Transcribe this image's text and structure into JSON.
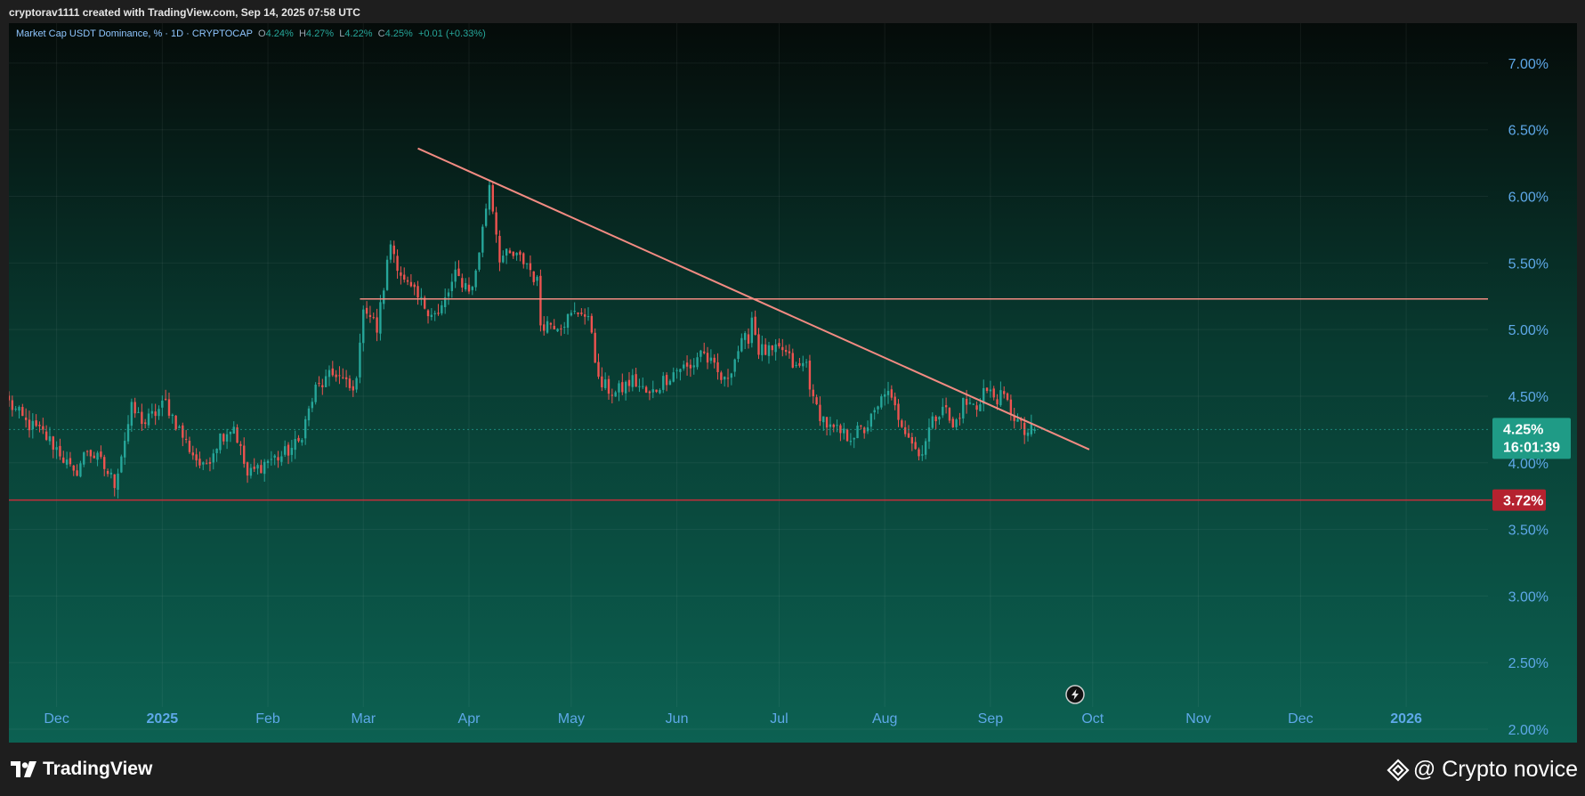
{
  "header": {
    "attribution": "cryptorav1111 created with TradingView.com, Sep 14, 2025 07:58 UTC"
  },
  "legend": {
    "symbol": "Market Cap USDT Dominance, % · 1D · CRYPTOCAP",
    "o_label": "O",
    "o_value": "4.24%",
    "h_label": "H",
    "h_value": "4.27%",
    "l_label": "L",
    "l_value": "4.22%",
    "c_label": "C",
    "c_value": "4.25%",
    "change": "+0.01 (+0.33%)"
  },
  "price_tags": {
    "current_price": "4.25%",
    "countdown": "16:01:39",
    "support_level": "3.72%"
  },
  "footer": {
    "brand": "TradingView",
    "watermark": "@ Crypto novice"
  },
  "colors": {
    "up": "#26a69a",
    "down": "#ef5350",
    "trendline": "#f28b82",
    "support_line": "#c62e3a",
    "current_tag": "#1f9b86",
    "support_tag": "#b5222f",
    "axis_text": "#5ea8e8"
  },
  "icons": [
    "flash-icon",
    "tradingview-logo-icon",
    "binance-diamond-icon"
  ],
  "chart_data": {
    "type": "candlestick",
    "title": "Market Cap USDT Dominance, %",
    "timeframe": "1D",
    "ylim": [
      1.9,
      7.3
    ],
    "y_ticks": [
      "2.00%",
      "2.50%",
      "3.00%",
      "3.50%",
      "4.00%",
      "4.50%",
      "5.00%",
      "5.50%",
      "6.00%",
      "6.50%",
      "7.00%"
    ],
    "x_ticks": [
      "Dec",
      "2025",
      "Feb",
      "Mar",
      "Apr",
      "May",
      "Jun",
      "Jul",
      "Aug",
      "Sep",
      "Oct",
      "Nov",
      "Dec",
      "2026"
    ],
    "x_tick_dates": [
      "2024-12-01",
      "2025-01-01",
      "2025-02-01",
      "2025-03-01",
      "2025-04-01",
      "2025-05-01",
      "2025-06-01",
      "2025-07-01",
      "2025-08-01",
      "2025-09-01",
      "2025-10-01",
      "2025-11-01",
      "2025-12-01",
      "2026-01-01"
    ],
    "xlim": [
      "2024-11-17",
      "2026-01-25"
    ],
    "grid": true,
    "close_path": [
      [
        "2024-11-17",
        4.45
      ],
      [
        "2024-11-22",
        4.3
      ],
      [
        "2024-11-27",
        4.22
      ],
      [
        "2024-12-02",
        4.08
      ],
      [
        "2024-12-06",
        3.9
      ],
      [
        "2024-12-10",
        4.1
      ],
      [
        "2024-12-14",
        4.0
      ],
      [
        "2024-12-18",
        3.85
      ],
      [
        "2024-12-23",
        4.4
      ],
      [
        "2024-12-27",
        4.3
      ],
      [
        "2025-01-02",
        4.45
      ],
      [
        "2025-01-08",
        4.15
      ],
      [
        "2025-01-13",
        3.95
      ],
      [
        "2025-01-18",
        4.2
      ],
      [
        "2025-01-22",
        4.28
      ],
      [
        "2025-01-26",
        3.9
      ],
      [
        "2025-02-01",
        4.02
      ],
      [
        "2025-02-05",
        4.05
      ],
      [
        "2025-02-10",
        4.15
      ],
      [
        "2025-02-15",
        4.55
      ],
      [
        "2025-02-21",
        4.68
      ],
      [
        "2025-02-26",
        4.52
      ],
      [
        "2025-02-28",
        4.85
      ],
      [
        "2025-03-01",
        5.2
      ],
      [
        "2025-03-05",
        5.0
      ],
      [
        "2025-03-09",
        5.65
      ],
      [
        "2025-03-13",
        5.35
      ],
      [
        "2025-03-18",
        5.2
      ],
      [
        "2025-03-23",
        5.1
      ],
      [
        "2025-03-28",
        5.4
      ],
      [
        "2025-04-02",
        5.3
      ],
      [
        "2025-04-05",
        5.75
      ],
      [
        "2025-04-07",
        6.1
      ],
      [
        "2025-04-10",
        5.55
      ],
      [
        "2025-04-14",
        5.55
      ],
      [
        "2025-04-18",
        5.5
      ],
      [
        "2025-04-21",
        5.35
      ],
      [
        "2025-04-22",
        5.05
      ],
      [
        "2025-04-28",
        5.05
      ],
      [
        "2025-05-01",
        5.1
      ],
      [
        "2025-05-04",
        5.15
      ],
      [
        "2025-05-07",
        5.0
      ],
      [
        "2025-05-09",
        4.6
      ],
      [
        "2025-05-14",
        4.52
      ],
      [
        "2025-05-19",
        4.62
      ],
      [
        "2025-05-24",
        4.5
      ],
      [
        "2025-05-28",
        4.62
      ],
      [
        "2025-06-02",
        4.72
      ],
      [
        "2025-06-05",
        4.7
      ],
      [
        "2025-06-08",
        4.85
      ],
      [
        "2025-06-12",
        4.7
      ],
      [
        "2025-06-15",
        4.6
      ],
      [
        "2025-06-19",
        4.85
      ],
      [
        "2025-06-22",
        4.95
      ],
      [
        "2025-06-23",
        5.1
      ],
      [
        "2025-06-25",
        4.85
      ],
      [
        "2025-06-29",
        4.82
      ],
      [
        "2025-07-02",
        4.85
      ],
      [
        "2025-07-06",
        4.7
      ],
      [
        "2025-07-09",
        4.75
      ],
      [
        "2025-07-11",
        4.45
      ],
      [
        "2025-07-16",
        4.25
      ],
      [
        "2025-07-21",
        4.2
      ],
      [
        "2025-07-26",
        4.25
      ],
      [
        "2025-07-30",
        4.4
      ],
      [
        "2025-08-01",
        4.55
      ],
      [
        "2025-08-04",
        4.4
      ],
      [
        "2025-08-08",
        4.22
      ],
      [
        "2025-08-11",
        4.05
      ],
      [
        "2025-08-14",
        4.25
      ],
      [
        "2025-08-18",
        4.45
      ],
      [
        "2025-08-21",
        4.25
      ],
      [
        "2025-08-24",
        4.45
      ],
      [
        "2025-08-28",
        4.42
      ],
      [
        "2025-08-30",
        4.55
      ],
      [
        "2025-09-02",
        4.5
      ],
      [
        "2025-09-05",
        4.48
      ],
      [
        "2025-09-08",
        4.35
      ],
      [
        "2025-09-11",
        4.22
      ],
      [
        "2025-09-14",
        4.25
      ]
    ],
    "trendline": {
      "start": [
        "2025-03-17",
        6.36
      ],
      "end": [
        "2025-09-30",
        4.1
      ]
    },
    "horizontal_resistance": {
      "start": "2025-02-28",
      "end": "2026-01-25",
      "value": 5.23
    },
    "horizontal_support": {
      "value": 3.72,
      "label": "3.72%"
    },
    "last": {
      "date": "2025-09-14",
      "open": 4.24,
      "high": 4.27,
      "low": 4.22,
      "close": 4.25,
      "change": 0.01,
      "change_pct": 0.33
    }
  }
}
